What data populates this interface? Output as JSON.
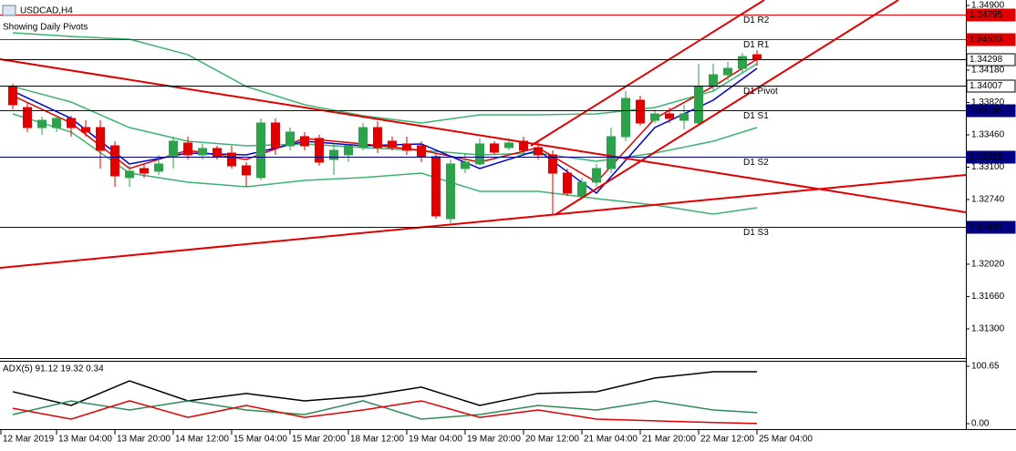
{
  "chart_data": {
    "type": "candlestick",
    "title": "USDCAD,H4",
    "subtitle": "Showing Daily Pivots",
    "up_color": "#2ca24a",
    "down_color": "#e00000",
    "x": [
      0,
      1,
      2,
      3,
      4,
      5,
      6,
      7,
      8,
      9,
      10,
      11,
      12,
      13,
      14,
      15,
      16,
      17,
      18,
      19,
      20,
      21,
      22,
      23,
      24,
      25,
      26,
      27,
      28,
      29,
      30,
      31,
      32,
      33,
      34,
      35,
      36,
      37,
      38,
      39,
      40,
      41,
      42,
      43,
      44,
      45,
      46,
      47,
      48,
      49,
      50,
      51
    ],
    "open": [
      1.33998,
      1.33764,
      1.33541,
      1.33541,
      1.33643,
      1.33541,
      1.33541,
      1.33338,
      1.32984,
      1.33085,
      1.33055,
      1.33217,
      1.33369,
      1.33237,
      1.33308,
      1.33257,
      1.33115,
      1.32984,
      1.33592,
      1.33338,
      1.3344,
      1.3342,
      1.33186,
      1.33237,
      1.33318,
      1.33541,
      1.33389,
      1.33359,
      1.33338,
      1.33217,
      1.32527,
      1.33085,
      1.33136,
      1.33359,
      1.33318,
      1.33389,
      1.33318,
      1.33237,
      1.33034,
      1.32781,
      1.32933,
      1.33085,
      1.3344,
      1.33845,
      1.33622,
      1.33693,
      1.33622,
      1.33592,
      1.33998,
      1.34129,
      1.342,
      1.34352
    ],
    "high": [
      1.34028,
      1.33825,
      1.33663,
      1.33683,
      1.33673,
      1.33622,
      1.33622,
      1.33389,
      1.33115,
      1.33136,
      1.33237,
      1.3344,
      1.3344,
      1.33359,
      1.33338,
      1.33338,
      1.33156,
      1.33643,
      1.33643,
      1.33541,
      1.33491,
      1.3346,
      1.33359,
      1.33389,
      1.33592,
      1.33612,
      1.3344,
      1.3344,
      1.33389,
      1.33257,
      1.33186,
      1.33257,
      1.3342,
      1.33389,
      1.3342,
      1.3344,
      1.33389,
      1.33288,
      1.33085,
      1.32984,
      1.33136,
      1.33541,
      1.33947,
      1.33896,
      1.33724,
      1.33764,
      1.33795,
      1.34251,
      1.34251,
      1.34271,
      1.34373,
      1.34403
    ],
    "low": [
      1.33744,
      1.33491,
      1.3346,
      1.33491,
      1.3344,
      1.3344,
      1.33085,
      1.32882,
      1.32882,
      1.32984,
      1.33014,
      1.33085,
      1.33186,
      1.33186,
      1.33186,
      1.33085,
      1.32882,
      1.32953,
      1.33237,
      1.33288,
      1.33288,
      1.33115,
      1.33014,
      1.33156,
      1.33288,
      1.33257,
      1.33288,
      1.33237,
      1.33156,
      1.32527,
      1.32477,
      1.33034,
      1.33115,
      1.33237,
      1.33288,
      1.33257,
      1.33186,
      1.32578,
      1.32781,
      1.3275,
      1.32882,
      1.33034,
      1.33389,
      1.33562,
      1.33592,
      1.33592,
      1.33521,
      1.33562,
      1.33947,
      1.34068,
      1.3415,
      1.34231
    ],
    "close": [
      1.33795,
      1.33541,
      1.33622,
      1.33643,
      1.33541,
      1.33491,
      1.33288,
      1.33004,
      1.33055,
      1.33034,
      1.33136,
      1.33389,
      1.33237,
      1.33308,
      1.33217,
      1.33115,
      1.33014,
      1.33592,
      1.33318,
      1.33491,
      1.33338,
      1.33156,
      1.33288,
      1.33338,
      1.33541,
      1.33318,
      1.33318,
      1.33288,
      1.33217,
      1.32558,
      1.33136,
      1.33156,
      1.33359,
      1.33267,
      1.33369,
      1.33288,
      1.33237,
      1.33034,
      1.32811,
      1.32933,
      1.33085,
      1.3344,
      1.33866,
      1.33592,
      1.33693,
      1.33643,
      1.33693,
      1.33998,
      1.34129,
      1.342,
      1.34332,
      1.34298
    ],
    "indicators": [
      {
        "color": "#3cb371",
        "x": [
          0,
          4,
          8,
          12,
          16,
          20,
          24,
          28,
          32,
          36,
          40,
          44,
          48,
          51
        ],
        "values": [
          1.34596,
          1.34555,
          1.34525,
          1.34352,
          1.33998,
          1.33795,
          1.33673,
          1.33592,
          1.33683,
          1.33683,
          1.33693,
          1.33764,
          1.33947,
          1.34251
        ]
      },
      {
        "color": "#3cb371",
        "x": [
          0,
          4,
          8,
          12,
          16,
          20,
          24,
          28,
          32,
          36,
          40,
          44,
          48,
          51
        ],
        "values": [
          1.33998,
          1.33825,
          1.33541,
          1.33389,
          1.33338,
          1.33359,
          1.33318,
          1.33288,
          1.33237,
          1.33257,
          1.33166,
          1.33257,
          1.33389,
          1.33541
        ]
      },
      {
        "color": "#3cb371",
        "x": [
          0,
          4,
          8,
          12,
          16,
          20,
          24,
          28,
          32,
          36,
          40,
          44,
          48,
          51
        ],
        "values": [
          1.33693,
          1.33491,
          1.33034,
          1.32933,
          1.32882,
          1.32953,
          1.32984,
          1.33034,
          1.32831,
          1.32831,
          1.3275,
          1.32679,
          1.32578,
          1.32649
        ]
      },
      {
        "color": "#e00000",
        "x": [
          0,
          4,
          8,
          12,
          16,
          20,
          24,
          28,
          32,
          36,
          40,
          44,
          48,
          51
        ],
        "values": [
          1.33896,
          1.33592,
          1.33085,
          1.33288,
          1.33186,
          1.3342,
          1.33359,
          1.33288,
          1.33156,
          1.33318,
          1.32933,
          1.33643,
          1.33998,
          1.34302
        ]
      },
      {
        "color": "#0000cd",
        "x": [
          0,
          4,
          8,
          12,
          16,
          20,
          24,
          28,
          32,
          36,
          40,
          44,
          48,
          51
        ],
        "values": [
          1.33947,
          1.33643,
          1.33136,
          1.33257,
          1.33237,
          1.33389,
          1.33338,
          1.33359,
          1.33085,
          1.33288,
          1.32811,
          1.33541,
          1.33845,
          1.342
        ]
      }
    ],
    "levels": [
      {
        "label": "D1 R2",
        "value": 1.34795,
        "color": "#e00000",
        "style": "filled"
      },
      {
        "label": "D1 R1",
        "value": 1.34523,
        "color": "#e00000",
        "style": "filled"
      },
      {
        "value": 1.34298,
        "color": "#000000",
        "style": "outline"
      },
      {
        "label": "D1 Pivot",
        "value": 1.34007,
        "color": "#000000",
        "style": "outline"
      },
      {
        "label": "D1 S1",
        "value": 1.33735,
        "color": "#000080",
        "style": "filled"
      },
      {
        "label": "D1 S2",
        "value": 1.33219,
        "color": "#000080",
        "style": "filled"
      },
      {
        "label": "D1 S3",
        "value": 1.32431,
        "color": "#000080",
        "style": "filled"
      }
    ],
    "xlim": [
      -0.875,
      65.3125
    ],
    "xticks": [
      {
        "value": -1,
        "label": "12 Mar 2019"
      },
      {
        "value": 3,
        "label": "13 Mar 04:00"
      },
      {
        "value": 7,
        "label": "13 Mar 20:00"
      },
      {
        "value": 11,
        "label": "14 Mar 12:00"
      },
      {
        "value": 15,
        "label": "15 Mar 04:00"
      },
      {
        "value": 19,
        "label": "15 Mar 20:00"
      },
      {
        "value": 23,
        "label": "18 Mar 12:00"
      },
      {
        "value": 27,
        "label": "19 Mar 04:00"
      },
      {
        "value": 31,
        "label": "19 Mar 20:00"
      },
      {
        "value": 35,
        "label": "20 Mar 12:00"
      },
      {
        "value": 39,
        "label": "21 Mar 04:00"
      },
      {
        "value": 43,
        "label": "21 Mar 20:00"
      },
      {
        "value": 47,
        "label": "22 Mar 12:00"
      },
      {
        "value": 51,
        "label": "25 Mar 04:00"
      }
    ],
    "ylim": [
      1.30975,
      1.34961
    ],
    "yticks": [
      {
        "value": 1.349,
        "label": "1.34900"
      },
      {
        "value": 1.3418,
        "label": "1.34180"
      },
      {
        "value": 1.3382,
        "label": "1.33820"
      },
      {
        "value": 1.3346,
        "label": "1.33460"
      },
      {
        "value": 1.331,
        "label": "1.33100"
      },
      {
        "value": 1.3274,
        "label": "1.32740"
      },
      {
        "value": 1.3202,
        "label": "1.32020"
      },
      {
        "value": 1.3166,
        "label": "1.31660"
      },
      {
        "value": 1.313,
        "label": "1.31300"
      }
    ],
    "adx": {
      "label": "ADX(5) 91.12 19.32 0.34",
      "ylim": [
        0,
        100.65
      ],
      "yticks": [
        100.65,
        {
          "value": 0,
          "label": "0.00"
        }
      ],
      "series": [
        {
          "color": "#000000",
          "x": [
            0,
            4,
            8,
            12,
            16,
            20,
            24,
            28,
            32,
            36,
            40,
            44,
            48,
            51
          ],
          "values": [
            56,
            32,
            75,
            40,
            53,
            40,
            48,
            64,
            32,
            53,
            56,
            80,
            91,
            91.12
          ]
        },
        {
          "color": "#2e8b57",
          "x": [
            0,
            4,
            8,
            12,
            16,
            20,
            24,
            28,
            32,
            36,
            40,
            44,
            48,
            51
          ],
          "values": [
            16,
            40,
            24,
            40,
            24,
            16,
            40,
            8,
            16,
            32,
            24,
            40,
            24,
            19.32
          ]
        },
        {
          "color": "#e00000",
          "x": [
            0,
            4,
            8,
            12,
            16,
            20,
            24,
            28,
            32,
            36,
            40,
            44,
            48,
            51
          ],
          "values": [
            27,
            8,
            40,
            11,
            32,
            11,
            24,
            40,
            11,
            24,
            8,
            5,
            2,
            0.34
          ]
        }
      ]
    }
  }
}
